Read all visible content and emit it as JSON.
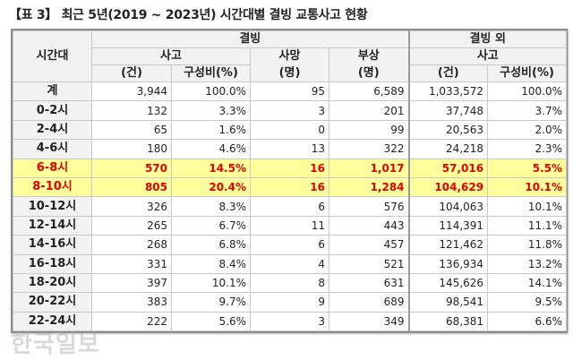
{
  "title": "【표 3】 최근 5년(2019 ~ 2023년) 시간대별 결빙 교통사고 현황",
  "header": {
    "time": "시간대",
    "icing": "결빙",
    "non_icing": "결빙 외",
    "accidents": "사고",
    "deaths": "사망",
    "injuries": "부상",
    "accidents2": "사고",
    "unit_count": "(건)",
    "unit_ratio": "구성비(%)",
    "unit_person": "(명)",
    "unit_person2": "(명)",
    "unit_count2": "(건)",
    "unit_ratio2": "구성비(%)"
  },
  "rows": [
    {
      "time": "계",
      "acc": "3,944",
      "ratio": "100.0%",
      "death": "95",
      "injury": "6,589",
      "acc2": "1,033,572",
      "ratio2": "100.0%",
      "hl": false
    },
    {
      "time": "0-2시",
      "acc": "132",
      "ratio": "3.3%",
      "death": "3",
      "injury": "201",
      "acc2": "37,748",
      "ratio2": "3.7%",
      "hl": false
    },
    {
      "time": "2-4시",
      "acc": "65",
      "ratio": "1.6%",
      "death": "0",
      "injury": "99",
      "acc2": "20,563",
      "ratio2": "2.0%",
      "hl": false
    },
    {
      "time": "4-6시",
      "acc": "180",
      "ratio": "4.6%",
      "death": "13",
      "injury": "322",
      "acc2": "24,218",
      "ratio2": "2.3%",
      "hl": false
    },
    {
      "time": "6-8시",
      "acc": "570",
      "ratio": "14.5%",
      "death": "16",
      "injury": "1,017",
      "acc2": "57,016",
      "ratio2": "5.5%",
      "hl": true
    },
    {
      "time": "8-10시",
      "acc": "805",
      "ratio": "20.4%",
      "death": "16",
      "injury": "1,284",
      "acc2": "104,629",
      "ratio2": "10.1%",
      "hl": true
    },
    {
      "time": "10-12시",
      "acc": "326",
      "ratio": "8.3%",
      "death": "6",
      "injury": "576",
      "acc2": "104,063",
      "ratio2": "10.1%",
      "hl": false
    },
    {
      "time": "12-14시",
      "acc": "265",
      "ratio": "6.7%",
      "death": "11",
      "injury": "443",
      "acc2": "114,391",
      "ratio2": "11.1%",
      "hl": false
    },
    {
      "time": "14-16시",
      "acc": "268",
      "ratio": "6.8%",
      "death": "6",
      "injury": "457",
      "acc2": "121,462",
      "ratio2": "11.8%",
      "hl": false
    },
    {
      "time": "16-18시",
      "acc": "331",
      "ratio": "8.4%",
      "death": "4",
      "injury": "521",
      "acc2": "136,934",
      "ratio2": "13.2%",
      "hl": false
    },
    {
      "time": "18-20시",
      "acc": "397",
      "ratio": "10.1%",
      "death": "8",
      "injury": "631",
      "acc2": "145,626",
      "ratio2": "14.1%",
      "hl": false
    },
    {
      "time": "20-22시",
      "acc": "383",
      "ratio": "9.7%",
      "death": "9",
      "injury": "689",
      "acc2": "98,541",
      "ratio2": "9.5%",
      "hl": false
    },
    {
      "time": "22-24시",
      "acc": "222",
      "ratio": "5.6%",
      "death": "3",
      "injury": "349",
      "acc2": "68,381",
      "ratio2": "6.6%",
      "hl": false
    }
  ],
  "colors": {
    "highlight_bg": "#ffff9c",
    "highlight_text": "#e00000"
  },
  "watermark": "한국일보"
}
